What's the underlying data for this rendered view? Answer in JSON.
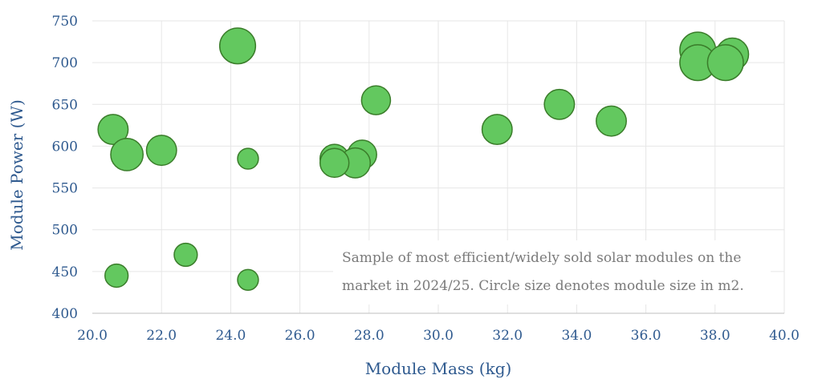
{
  "chart_data": {
    "type": "scatter",
    "title": "",
    "xlabel": "Module Mass (kg)",
    "ylabel": "Module Power (W)",
    "xlim": [
      20,
      40
    ],
    "ylim": [
      400,
      750
    ],
    "x_ticks": [
      "20.0",
      "22.0",
      "24.0",
      "26.0",
      "28.0",
      "30.0",
      "32.0",
      "34.0",
      "36.0",
      "38.0",
      "40.0"
    ],
    "y_ticks": [
      "400",
      "450",
      "500",
      "550",
      "600",
      "650",
      "700",
      "750"
    ],
    "grid": "vertical and horizontal",
    "annotation_lines": [
      "Sample of most efficient/widely sold solar modules on the",
      "market in 2024/25. Circle size denotes module size in m2."
    ],
    "colors": {
      "fill": "#63c85f",
      "stroke": "#3a7d2a"
    },
    "series": [
      {
        "points": [
          {
            "x": 20.6,
            "y": 620,
            "size": 2.6
          },
          {
            "x": 21.0,
            "y": 590,
            "size": 2.8
          },
          {
            "x": 22.0,
            "y": 595,
            "size": 2.6
          },
          {
            "x": 20.7,
            "y": 445,
            "size": 2.0
          },
          {
            "x": 22.7,
            "y": 470,
            "size": 2.0
          },
          {
            "x": 24.2,
            "y": 720,
            "size": 3.1
          },
          {
            "x": 24.5,
            "y": 585,
            "size": 1.8
          },
          {
            "x": 24.5,
            "y": 440,
            "size": 1.8
          },
          {
            "x": 27.0,
            "y": 585,
            "size": 2.5
          },
          {
            "x": 27.8,
            "y": 590,
            "size": 2.5
          },
          {
            "x": 27.6,
            "y": 580,
            "size": 2.6
          },
          {
            "x": 27.0,
            "y": 580,
            "size": 2.5
          },
          {
            "x": 28.2,
            "y": 655,
            "size": 2.5
          },
          {
            "x": 31.7,
            "y": 620,
            "size": 2.6
          },
          {
            "x": 33.5,
            "y": 650,
            "size": 2.6
          },
          {
            "x": 35.0,
            "y": 630,
            "size": 2.6
          },
          {
            "x": 37.5,
            "y": 715,
            "size": 3.1
          },
          {
            "x": 38.5,
            "y": 710,
            "size": 2.8
          },
          {
            "x": 37.5,
            "y": 700,
            "size": 3.1
          },
          {
            "x": 38.3,
            "y": 700,
            "size": 3.1
          }
        ]
      }
    ]
  }
}
